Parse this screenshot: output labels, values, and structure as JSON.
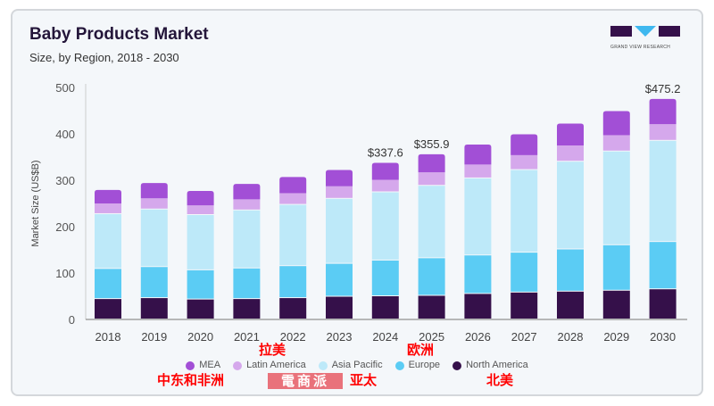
{
  "header": {
    "title": "Baby Products Market",
    "subtitle": "Size, by Region, 2018 - 2030",
    "logo_text": "GRAND VIEW RESEARCH"
  },
  "chart_data": {
    "type": "bar",
    "stacked": true,
    "title": "Baby Products Market",
    "subtitle": "Size, by Region, 2018 - 2030",
    "xlabel": "",
    "ylabel": "Market Size (US$B)",
    "ylim": [
      0,
      500
    ],
    "yticks": [
      0,
      100,
      200,
      300,
      400,
      500
    ],
    "grid": false,
    "legend_position": "bottom",
    "categories": [
      "2018",
      "2019",
      "2020",
      "2021",
      "2022",
      "2023",
      "2024",
      "2025",
      "2026",
      "2027",
      "2028",
      "2029",
      "2030"
    ],
    "series": [
      {
        "name": "North America",
        "color": "#35104a",
        "values": [
          44,
          46,
          43,
          44,
          46,
          49,
          50,
          51,
          55,
          58,
          60,
          62,
          65
        ]
      },
      {
        "name": "Europe",
        "color": "#5bccf4",
        "values": [
          65,
          67,
          63,
          66,
          69,
          71,
          77,
          81,
          83,
          86,
          91,
          98,
          102
        ]
      },
      {
        "name": "Asia Pacific",
        "color": "#bde9f9",
        "values": [
          118,
          124,
          119,
          125,
          132,
          140,
          147,
          156,
          166,
          178,
          189,
          202,
          218
        ]
      },
      {
        "name": "Latin America",
        "color": "#d5a8ec",
        "values": [
          23,
          24,
          21,
          24,
          25,
          27,
          27,
          29,
          30,
          32,
          35,
          35,
          36
        ]
      },
      {
        "name": "MEA",
        "color": "#a24fd6",
        "values": [
          29,
          33,
          31,
          33,
          35,
          35,
          36.6,
          38.9,
          43,
          45,
          47,
          52,
          54.2
        ]
      }
    ],
    "data_labels": [
      {
        "category": "2024",
        "text": "$337.6"
      },
      {
        "category": "2025",
        "text": "$355.9"
      },
      {
        "category": "2030",
        "text": "$475.2"
      }
    ]
  },
  "legend": [
    {
      "name": "MEA",
      "color": "#a24fd6"
    },
    {
      "name": "Latin America",
      "color": "#d5a8ec"
    },
    {
      "name": "Asia Pacific",
      "color": "#bde9f9"
    },
    {
      "name": "Europe",
      "color": "#5bccf4"
    },
    {
      "name": "North America",
      "color": "#35104a"
    }
  ],
  "annotations": {
    "latam": "拉美",
    "europe": "欧洲",
    "mea": "中东和非洲",
    "apac": "亚太",
    "na": "北美",
    "watermark": "電商派"
  }
}
